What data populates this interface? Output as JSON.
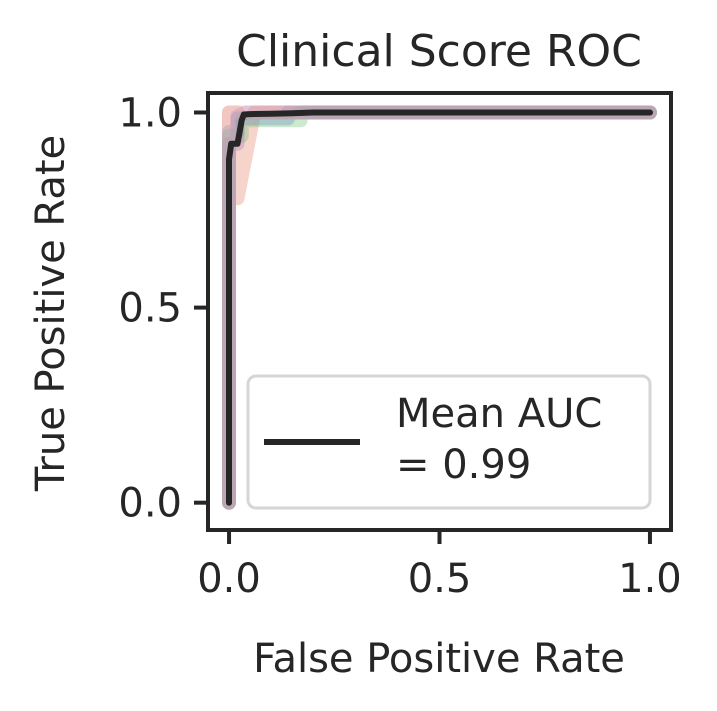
{
  "chart_data": {
    "type": "line",
    "title": "Clinical Score ROC",
    "xlabel": "False Positive Rate",
    "ylabel": "True Positive Rate",
    "xlim": [
      -0.05,
      1.05
    ],
    "ylim": [
      -0.07,
      1.05
    ],
    "x_ticks": [
      0.0,
      0.5,
      1.0
    ],
    "x_tick_labels": [
      "0.0",
      "0.5",
      "1.0"
    ],
    "y_ticks": [
      0.0,
      0.5,
      1.0
    ],
    "y_tick_labels": [
      "0.0",
      "0.5",
      "1.0"
    ],
    "grid": false,
    "legend": {
      "placement": "lower-right",
      "line1": "Mean AUC",
      "line2": "= 0.99"
    },
    "series": [
      {
        "legend": true,
        "color": "#262626",
        "style": "mean",
        "x": [
          0.0,
          0.0,
          0.005,
          0.01,
          0.02,
          0.025,
          0.03,
          0.035,
          0.05,
          0.1,
          0.15,
          0.2,
          0.3,
          0.5,
          0.75,
          1.0
        ],
        "y": [
          0.0,
          0.88,
          0.92,
          0.92,
          0.92,
          0.95,
          0.98,
          0.995,
          0.996,
          0.997,
          0.998,
          1.0,
          1.0,
          1.0,
          1.0,
          1.0
        ]
      },
      {
        "legend": false,
        "color": "#e8836a",
        "style": "fold",
        "x": [
          0.0,
          0.0,
          0.02,
          0.02,
          0.06,
          0.1,
          0.2,
          0.5,
          1.0
        ],
        "y": [
          0.0,
          1.0,
          1.0,
          0.78,
          1.0,
          1.0,
          1.0,
          1.0,
          1.0
        ]
      },
      {
        "legend": false,
        "color": "#6fbf73",
        "style": "fold",
        "x": [
          0.0,
          0.0,
          0.03,
          0.03,
          0.06,
          0.11,
          0.17,
          0.17,
          0.3,
          1.0
        ],
        "y": [
          0.0,
          0.94,
          0.94,
          0.98,
          0.98,
          0.98,
          0.98,
          1.0,
          1.0,
          1.0
        ]
      },
      {
        "legend": false,
        "color": "#6a8fbf",
        "style": "fold",
        "x": [
          0.0,
          0.0,
          0.02,
          0.02,
          0.06,
          0.14,
          0.14,
          0.3,
          1.0
        ],
        "y": [
          0.0,
          0.95,
          0.95,
          0.985,
          0.985,
          0.985,
          1.0,
          1.0,
          1.0
        ]
      },
      {
        "legend": false,
        "color": "#a07cc0",
        "style": "fold",
        "x": [
          0.0,
          0.0,
          0.02,
          0.02,
          0.04,
          0.3,
          1.0
        ],
        "y": [
          0.0,
          0.92,
          0.92,
          0.99,
          1.0,
          1.0,
          1.0
        ]
      },
      {
        "legend": false,
        "color": "#e8b0b0",
        "style": "fold",
        "x": [
          0.0,
          0.0,
          0.04,
          0.3,
          1.0
        ],
        "y": [
          0.0,
          1.0,
          1.0,
          1.0,
          1.0
        ]
      }
    ]
  }
}
